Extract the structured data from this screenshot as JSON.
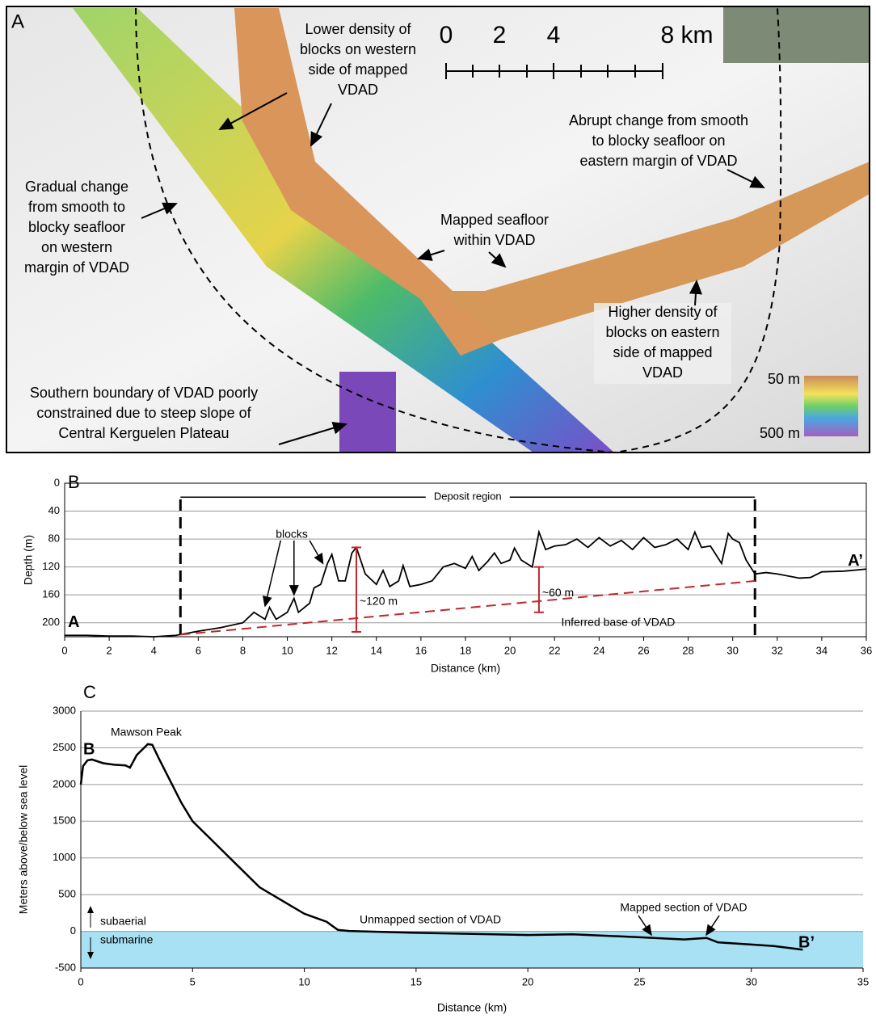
{
  "panel_a": {
    "label": "A",
    "annotations": [
      {
        "lines": [
          "Lower density of",
          "blocks on western",
          "side of mapped",
          "VDAD"
        ]
      },
      {
        "lines": [
          "Abrupt change from smooth",
          "to blocky seafloor on",
          "eastern margin of VDAD"
        ]
      },
      {
        "lines": [
          "Gradual change",
          "from smooth to",
          "blocky seafloor",
          "on western",
          "margin of VDAD"
        ]
      },
      {
        "lines": [
          "Mapped seafloor",
          "within VDAD"
        ]
      },
      {
        "lines": [
          "Higher density of",
          "blocks on eastern",
          "side of mapped",
          "VDAD"
        ]
      },
      {
        "lines": [
          "Southern boundary of VDAD poorly",
          "constrained due to steep slope of",
          "Central Kerguelen Plateau"
        ]
      }
    ],
    "scale_bar": [
      "0",
      "2",
      "4",
      "8 km"
    ],
    "color_scale": {
      "top": "50 m",
      "bottom": "500 m"
    }
  },
  "chart_data": [
    {
      "type": "line",
      "panel_label": "B",
      "xlabel": "Distance (km)",
      "ylabel": "Depth (m)",
      "xlim": [
        0,
        36
      ],
      "xticks": [
        0,
        2,
        4,
        6,
        8,
        10,
        12,
        14,
        16,
        18,
        20,
        22,
        24,
        26,
        28,
        30,
        32,
        34,
        36
      ],
      "ylim": [
        0,
        220
      ],
      "yticks": [
        0,
        40,
        80,
        120,
        160,
        200
      ],
      "y_inverted": true,
      "grid": true,
      "series": [
        {
          "color": "#000000",
          "x": [
            0,
            1,
            2,
            3,
            4,
            5,
            6,
            7,
            8,
            8.5,
            9,
            9.2,
            9.5,
            10,
            10.3,
            10.5,
            11,
            11.2,
            11.5,
            11.8,
            12,
            12.3,
            12.6,
            12.9,
            13.1,
            13.5,
            14,
            14.3,
            14.6,
            15,
            15.2,
            15.5,
            16,
            16.5,
            17,
            17.5,
            18,
            18.3,
            18.6,
            19,
            19.3,
            19.6,
            20,
            20.2,
            20.5,
            21,
            21.3,
            21.6,
            22,
            22.5,
            23,
            23.5,
            24,
            24.5,
            25,
            25.5,
            26,
            26.5,
            27,
            27.5,
            28,
            28.3,
            28.6,
            29,
            29.5,
            29.8,
            30,
            30.3,
            30.6,
            31,
            31.5,
            32,
            33,
            33.5,
            34,
            35,
            36
          ],
          "values": [
            218,
            218,
            219,
            219,
            220,
            218,
            212,
            207,
            200,
            185,
            195,
            178,
            195,
            185,
            165,
            185,
            172,
            150,
            145,
            115,
            102,
            140,
            140,
            100,
            92,
            130,
            145,
            125,
            148,
            140,
            118,
            148,
            145,
            140,
            120,
            115,
            122,
            105,
            125,
            112,
            100,
            115,
            110,
            93,
            110,
            120,
            70,
            95,
            90,
            88,
            80,
            92,
            78,
            90,
            82,
            95,
            78,
            92,
            88,
            80,
            95,
            70,
            92,
            90,
            115,
            72,
            80,
            85,
            110,
            130,
            128,
            130,
            136,
            135,
            127,
            126,
            123
          ]
        }
      ],
      "deposit_bounds": [
        5.2,
        31
      ],
      "deposit_label": "Deposit region",
      "inferred_base": {
        "x": [
          5.2,
          31
        ],
        "values": [
          217,
          140
        ],
        "label": "Inferred base of VDAD"
      },
      "thickness_bars": [
        {
          "x": 13.1,
          "from": 92,
          "to": 213,
          "label": "~120 m"
        },
        {
          "x": 21.3,
          "from": 120,
          "to": 185,
          "label": "~60 m"
        }
      ],
      "blocks_label": "blocks",
      "start_label": "A",
      "end_label": "A’"
    },
    {
      "type": "line",
      "panel_label": "C",
      "xlabel": "Distance (km)",
      "ylabel": "Meters above/below sea level",
      "xlim": [
        0,
        35
      ],
      "xticks": [
        0,
        5,
        10,
        15,
        20,
        25,
        30,
        35
      ],
      "ylim": [
        -500,
        3000
      ],
      "yticks": [
        -500,
        0,
        500,
        1000,
        1500,
        2000,
        2500,
        3000
      ],
      "grid": true,
      "series": [
        {
          "color": "#000000",
          "x": [
            0,
            0.1,
            0.3,
            0.5,
            1,
            1.5,
            2,
            2.2,
            2.5,
            3,
            3.2,
            3.5,
            4,
            4.5,
            5,
            6,
            7,
            8,
            9,
            10,
            11,
            11.5,
            12,
            15,
            20,
            22,
            25,
            27,
            28,
            28.5,
            30,
            31,
            32.3
          ],
          "values": [
            2000,
            2250,
            2330,
            2340,
            2290,
            2270,
            2260,
            2230,
            2400,
            2550,
            2540,
            2350,
            2050,
            1750,
            1500,
            1200,
            900,
            600,
            420,
            240,
            130,
            20,
            5,
            -20,
            -50,
            -40,
            -80,
            -110,
            -90,
            -150,
            -180,
            -200,
            -250
          ]
        }
      ],
      "sea_color": "#a7e1f3",
      "peak_label": "Mawson Peak",
      "start_label": "B",
      "end_label": "B’",
      "above_label": "subaerial",
      "below_label": "submarine",
      "unmapped_label": "Unmapped section of VDAD",
      "mapped_label": "Mapped section of VDAD"
    }
  ]
}
